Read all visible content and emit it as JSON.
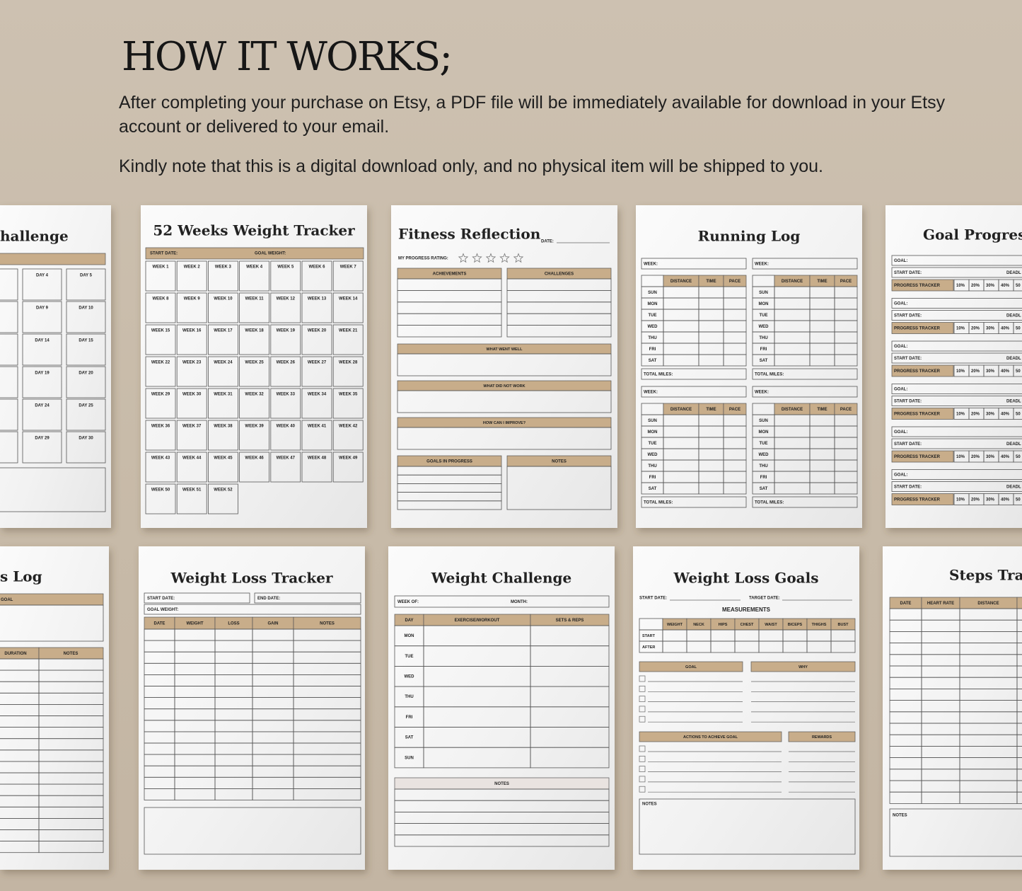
{
  "header": {
    "title": "HOW IT WORKS;",
    "paragraphs": [
      "After completing your purchase on Etsy, a PDF file will be immediately available for download in your Etsy account or delivered to your email.",
      "Kindly note that this is a digital download only, and no physical item will be shipped to you."
    ]
  },
  "pages": [
    {
      "title": "hallenge",
      "days": [
        "DAY 4",
        "DAY 5",
        "DAY 9",
        "DAY 10",
        "DAY 14",
        "DAY 15",
        "DAY 19",
        "DAY 20",
        "DAY 24",
        "DAY 25",
        "DAY 29",
        "DAY 30"
      ]
    },
    {
      "title": "52 Weeks Weight Tracker",
      "fields": [
        "START DATE:",
        "GOAL WEIGHT:"
      ],
      "weeks": [
        "WEEK 1",
        "WEEK 2",
        "WEEK 3",
        "WEEK 4",
        "WEEK 5",
        "WEEK 6",
        "WEEK 7",
        "WEEK 8",
        "WEEK 9",
        "WEEK 10",
        "WEEK 11",
        "WEEK 12",
        "WEEK 13",
        "WEEK 14",
        "WEEK 15",
        "WEEK 16",
        "WEEK 17",
        "WEEK 18",
        "WEEK 19",
        "WEEK 20",
        "WEEK 21",
        "WEEK 22",
        "WEEK 23",
        "WEEK 24",
        "WEEK 25",
        "WEEK 26",
        "WEEK 27",
        "WEEK 28",
        "WEEK 29",
        "WEEK 30",
        "WEEK 31",
        "WEEK 32",
        "WEEK 33",
        "WEEK 34",
        "WEEK 35",
        "WEEK 36",
        "WEEK 37",
        "WEEK 38",
        "WEEK 39",
        "WEEK 40",
        "WEEK 41",
        "WEEK 42",
        "WEEK 43",
        "WEEK 44",
        "WEEK 45",
        "WEEK 46",
        "WEEK 47",
        "WEEK 48",
        "WEEK 49",
        "WEEK 50",
        "WEEK 51",
        "WEEK 52"
      ]
    },
    {
      "title": "Fitness Reflection",
      "date": "DATE:",
      "rating": "MY PROGRESS RATING:",
      "sections": [
        "ACHIEVEMENTS",
        "CHALLENGES",
        "WHAT WENT WELL",
        "WHAT DID NOT WORK",
        "HOW CAN I IMPROVE?",
        "GOALS IN PROGRESS",
        "NOTES"
      ]
    },
    {
      "title": "Running Log",
      "week": "WEEK:",
      "columns": [
        "DISTANCE",
        "TIME",
        "PACE"
      ],
      "days": [
        "SUN",
        "MON",
        "TUE",
        "WED",
        "THU",
        "FRI",
        "SAT"
      ],
      "total": "TOTAL MILES:"
    },
    {
      "title": "Goal Progress T",
      "goal": "GOAL:",
      "start": "START DATE:",
      "deadline": "DEADL",
      "tracker": "PROGRESS TRACKER",
      "percents": [
        "10%",
        "20%",
        "30%",
        "40%",
        "50"
      ]
    },
    {
      "title": "s Log",
      "goal": "GOAL",
      "columns": [
        "DURATION",
        "NOTES"
      ]
    },
    {
      "title": "Weight Loss Tracker",
      "fields": [
        "START DATE:",
        "END DATE:",
        "GOAL WEIGHT:"
      ],
      "columns": [
        "DATE",
        "WEIGHT",
        "LOSS",
        "GAIN",
        "NOTES"
      ]
    },
    {
      "title": "Weight Challenge",
      "fields": [
        "WEEK OF:",
        "MONTH:"
      ],
      "columns": [
        "DAY",
        "EXERCISE/WORKOUT",
        "SETS & REPS"
      ],
      "days": [
        "MON",
        "TUE",
        "WED",
        "THU",
        "FRI",
        "SAT",
        "SUN"
      ],
      "notes": "NOTES"
    },
    {
      "title": "Weight Loss Goals",
      "fields": [
        "START DATE:",
        "TARGET DATE:"
      ],
      "measurements": "MEASUREMENTS",
      "columns": [
        "WEIGHT",
        "NECK",
        "HIPS",
        "CHEST",
        "WAIST",
        "BICEPS",
        "THIGHS",
        "BUST"
      ],
      "rows": [
        "START",
        "AFTER"
      ],
      "sections": [
        "GOAL",
        "WHY",
        "ACTIONS TO ACHIEVE GOAL",
        "REWARDS"
      ],
      "notes": "NOTES"
    },
    {
      "title": "Steps Trac",
      "columns": [
        "DATE",
        "HEART RATE",
        "DISTANCE"
      ],
      "notes": "NOTES"
    }
  ]
}
